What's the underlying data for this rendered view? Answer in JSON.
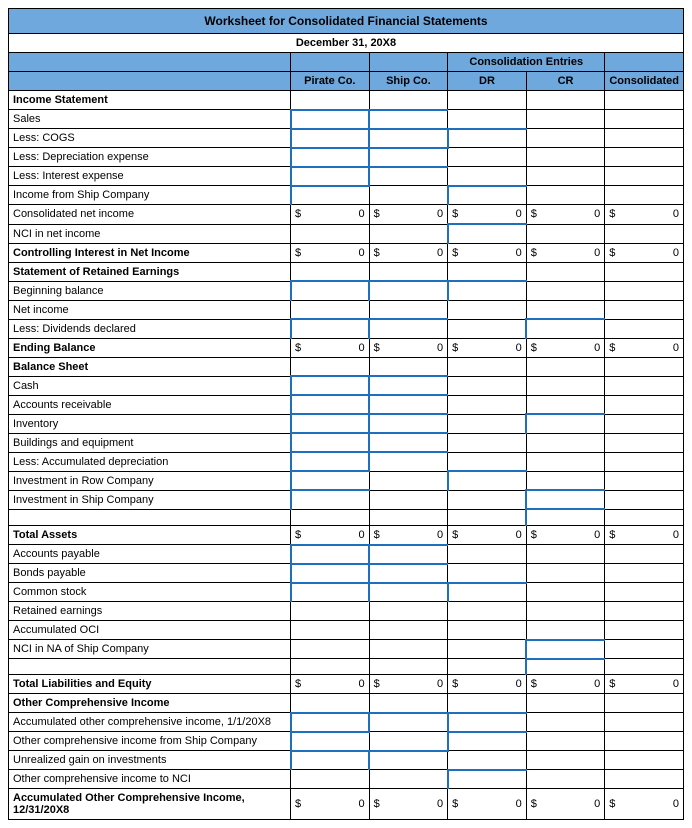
{
  "title": "Worksheet for Consolidated Financial Statements",
  "date": "December 31, 20X8",
  "columns": {
    "pirate": "Pirate Co.",
    "ship": "Ship Co.",
    "dr": "DR",
    "cr": "CR",
    "consolidated": "Consolidated",
    "consol_entries": "Consolidation Entries"
  },
  "sections": {
    "income_statement": "Income Statement",
    "retained_earnings": "Statement of Retained Earnings",
    "balance_sheet": "Balance Sheet",
    "oci": "Other Comprehensive Income"
  },
  "rows": {
    "sales": "Sales",
    "cogs": "Less: COGS",
    "depr": "Less: Depreciation expense",
    "interest": "Less: Interest expense",
    "inc_ship": "Income from Ship Company",
    "cons_ni": "Consolidated net income",
    "nci_ni": "NCI in net income",
    "ctrl_int": "Controlling Interest in Net Income",
    "beg_bal": "Beginning balance",
    "net_inc": "Net income",
    "divs": "Less: Dividends declared",
    "end_bal": "Ending Balance",
    "cash": "Cash",
    "ar": "Accounts receivable",
    "inv": "Inventory",
    "bldg": "Buildings and equipment",
    "acc_dep": "Less: Accumulated depreciation",
    "inv_row": "Investment in Row Company",
    "inv_ship": "Investment in Ship Company",
    "tot_assets": "Total Assets",
    "ap": "Accounts payable",
    "bonds": "Bonds payable",
    "cs": "Common stock",
    "re": "Retained earnings",
    "aoci": "Accumulated OCI",
    "nci_na": "NCI in NA of Ship Company",
    "tot_le": "Total Liabilities and Equity",
    "aoci_beg": "Accumulated other comprehensive income, 1/1/20X8",
    "oci_ship": "Other comprehensive income from Ship Company",
    "unreal": "Unrealized gain on investments",
    "oci_nci": "Other comprehensive income to NCI",
    "aoci_end": "Accumulated Other Comprehensive Income, 12/31/20X8"
  },
  "zero": "0",
  "currency_symbol": "$",
  "colors": {
    "header_bg": "#6fa8dc",
    "input_border": "#1f6fbf",
    "grid": "#000000",
    "bg": "#ffffff"
  }
}
